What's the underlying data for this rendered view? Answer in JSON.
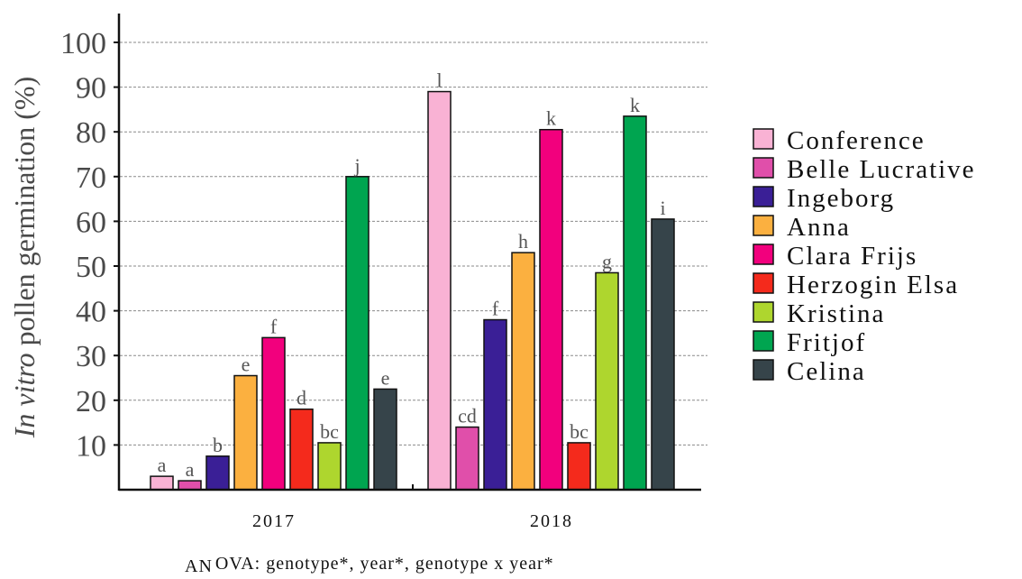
{
  "chart_data": {
    "type": "bar",
    "ylabel_italic": "In vitro",
    "ylabel_rest": " pollen germination (%)",
    "categories": [
      "2017",
      "2018"
    ],
    "ylim": [
      0,
      100
    ],
    "yticks": [
      10,
      20,
      30,
      40,
      50,
      60,
      70,
      80,
      90,
      100
    ],
    "grid": true,
    "legend_position": "right",
    "series": [
      {
        "name": "Conference",
        "color": "#F9B2D4",
        "values": [
          3,
          89
        ],
        "letters": [
          "a",
          "l"
        ]
      },
      {
        "name": "Belle Lucrative",
        "color": "#E04FAA",
        "values": [
          2,
          14
        ],
        "letters": [
          "a",
          "cd"
        ]
      },
      {
        "name": "Ingeborg",
        "color": "#3A1F96",
        "values": [
          7.5,
          38
        ],
        "letters": [
          "b",
          "f"
        ]
      },
      {
        "name": "Anna",
        "color": "#FBB040",
        "values": [
          25.5,
          53
        ],
        "letters": [
          "e",
          "h"
        ]
      },
      {
        "name": "Clara Frijs",
        "color": "#F2007D",
        "values": [
          34,
          80.5
        ],
        "letters": [
          "f",
          "k"
        ]
      },
      {
        "name": "Herzogin Elsa",
        "color": "#F42A1C",
        "values": [
          18,
          10.5
        ],
        "letters": [
          "d",
          "bc"
        ]
      },
      {
        "name": "Kristina",
        "color": "#AED62E",
        "values": [
          10.5,
          48.5
        ],
        "letters": [
          "bc",
          "g"
        ]
      },
      {
        "name": "Fritjof",
        "color": "#00A550",
        "values": [
          70,
          83.5
        ],
        "letters": [
          "j",
          "k"
        ]
      },
      {
        "name": "Celina",
        "color": "#36444A",
        "values": [
          22.5,
          60.5
        ],
        "letters": [
          "e",
          "i"
        ]
      }
    ],
    "footer_prefix": "AN",
    "footer_rest": "OVA: genotype*, year*, genotype x year*"
  }
}
